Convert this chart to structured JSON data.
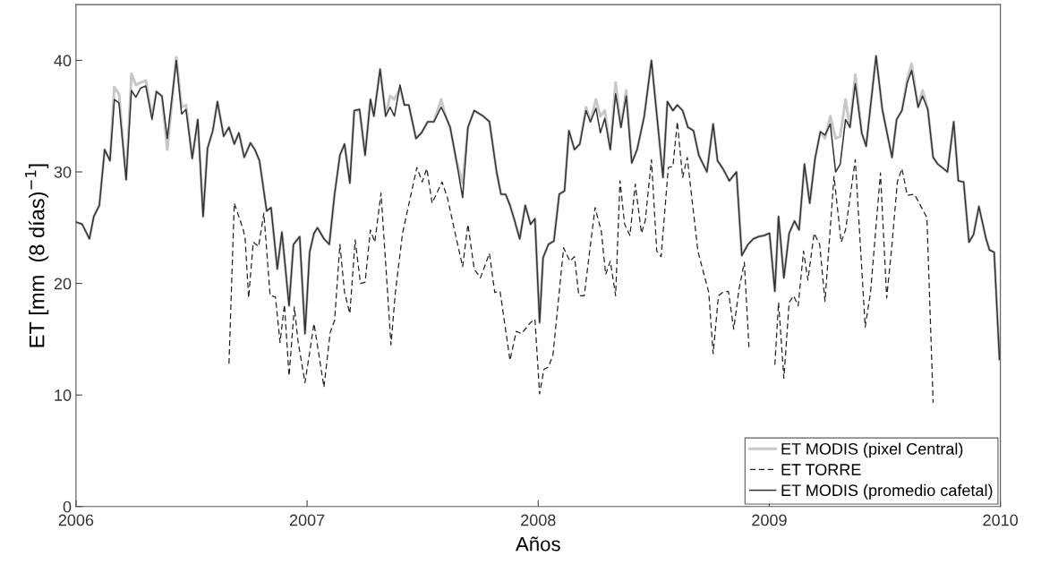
{
  "chart_data": {
    "type": "line",
    "xlabel": "Años",
    "ylabel": "ET [mm  (8 días)$^{−1}$]",
    "xlim": [
      2006,
      2010
    ],
    "xticks": [
      2006,
      2007,
      2008,
      2009,
      2010
    ],
    "ylim": [
      0,
      45
    ],
    "yticks": [
      0,
      10,
      20,
      30,
      40
    ],
    "grid": false,
    "legend": "bottom right",
    "marker": "none",
    "series": [
      {
        "name": "ET MODIS (pixel Central)",
        "color": "#c8c8c8",
        "line_style": "solid",
        "x": [
          2006.0,
          2006.027,
          2006.058,
          2006.077,
          2006.101,
          2006.124,
          2006.147,
          2006.166,
          2006.186,
          2006.217,
          2006.24,
          2006.259,
          2006.279,
          2006.302,
          2006.329,
          2006.348,
          2006.372,
          2006.395,
          2006.434,
          2006.457,
          2006.476,
          2006.503,
          2006.527,
          2006.55,
          2006.569,
          2006.592,
          2006.612,
          2006.639,
          2006.662,
          2006.685,
          2006.705,
          2006.728,
          2006.755,
          2006.774,
          2006.794,
          2006.825,
          2006.844,
          2006.871,
          2006.891,
          2006.922,
          2006.941,
          2006.968,
          2006.991,
          2007.011,
          2007.03,
          2007.045,
          2007.073,
          2007.096,
          2007.119,
          2007.142,
          2007.162,
          2007.185,
          2007.204,
          2007.227,
          2007.251,
          2007.274,
          2007.289,
          2007.316,
          2007.34,
          2007.359,
          2007.378,
          2007.402,
          2007.421,
          2007.44,
          2007.471,
          2007.495,
          2007.522,
          2007.549,
          2007.58,
          2007.599,
          2007.619,
          2007.646,
          2007.673,
          2007.696,
          2007.723,
          2007.762,
          2007.789,
          2007.82,
          2007.839,
          2007.859,
          2007.878,
          2007.897,
          2007.92,
          2007.944,
          2007.967,
          2007.986,
          2008.006,
          2008.021,
          2008.044,
          2008.068,
          2008.091,
          2008.114,
          2008.133,
          2008.157,
          2008.18,
          2008.207,
          2008.226,
          2008.25,
          2008.269,
          2008.288,
          2008.312,
          2008.335,
          2008.358,
          2008.381,
          2008.405,
          2008.428,
          2008.459,
          2008.49,
          2008.54,
          2008.559,
          2008.583,
          2008.602,
          2008.625,
          2008.648,
          2008.672,
          2008.695,
          2008.73,
          2008.757,
          2008.776,
          2008.799,
          2008.827,
          2008.858,
          2008.881,
          2008.908,
          2008.931,
          2008.954,
          2008.978,
          2009.001,
          2009.024,
          2009.04,
          2009.063,
          2009.086,
          2009.109,
          2009.129,
          2009.152,
          2009.175,
          2009.198,
          2009.221,
          2009.241,
          2009.264,
          2009.287,
          2009.307,
          2009.33,
          2009.349,
          2009.372,
          2009.4,
          2009.419,
          2009.462,
          2009.489,
          2009.531,
          2009.551,
          2009.574,
          2009.597,
          2009.616,
          2009.644,
          2009.663,
          2009.686,
          2009.709,
          2009.729,
          2009.771,
          2009.798,
          2009.818,
          2009.841,
          2009.864,
          2009.884,
          2009.907,
          2009.938,
          2009.953,
          2009.973,
          2009.996
        ],
        "values": [
          25.5,
          25.3,
          24,
          26,
          27,
          32,
          31,
          37.6,
          37,
          29.3,
          38.8,
          37.8,
          38,
          38.2,
          35,
          37.2,
          36.8,
          32,
          40.3,
          35.8,
          36,
          31.2,
          34.7,
          26,
          32.1,
          33.7,
          36.3,
          33.2,
          34,
          32.5,
          33.5,
          31.3,
          32.6,
          32,
          31,
          26.5,
          26.8,
          21.3,
          24.6,
          18,
          23.5,
          24.2,
          15.5,
          22.8,
          24.5,
          25,
          24,
          23.5,
          28,
          31.5,
          32.5,
          29,
          35.5,
          35.6,
          31.5,
          36.5,
          35,
          39.2,
          35,
          36.8,
          36.5,
          37.5,
          36,
          36,
          33,
          33.5,
          34.5,
          34.5,
          36.5,
          35,
          34,
          31,
          29,
          34,
          35.5,
          35,
          34.5,
          30,
          28,
          28,
          27,
          25.7,
          24,
          27,
          25.3,
          25.8,
          16.5,
          22.3,
          23.5,
          23.8,
          28,
          28.3,
          33.7,
          32,
          32.5,
          35.8,
          34.5,
          36.5,
          35,
          35.5,
          32,
          38,
          34,
          37.3,
          30.8,
          32,
          35,
          40,
          29.5,
          36.3,
          35.5,
          36,
          35.5,
          34,
          33.7,
          31.5,
          30,
          34.3,
          31,
          30.3,
          29.2,
          30,
          22.5,
          23.5,
          24,
          24.2,
          24.3,
          24.5,
          19.3,
          26,
          20.5,
          24.5,
          25.6,
          24.8,
          30.7,
          27.2,
          31.2,
          33.6,
          33,
          35,
          33,
          33.2,
          36.5,
          34,
          38.7,
          33.5,
          32.3,
          40.4,
          35.6,
          31.3,
          34.7,
          35.5,
          38.3,
          39.7,
          35.8,
          37.3,
          35.6,
          31.3,
          30.7,
          30,
          34.5,
          29.2,
          29.1,
          23.7,
          24.4,
          26.9,
          24,
          23,
          22.8,
          13.2
        ]
      },
      {
        "name": "ET TORRE",
        "color": "#222222",
        "line_style": "dashed",
        "x": [
          2006.662,
          2006.685,
          2006.724,
          2006.732,
          2006.747,
          2006.767,
          2006.79,
          2006.813,
          2006.84,
          2006.863,
          2006.883,
          2006.902,
          2006.922,
          2006.945,
          2006.96,
          2006.991,
          2007.03,
          2007.073,
          2007.1,
          2007.119,
          2007.142,
          2007.162,
          2007.185,
          2007.208,
          2007.231,
          2007.251,
          2007.274,
          2007.293,
          2007.32,
          2007.363,
          2007.382,
          2007.413,
          2007.475,
          2007.498,
          2007.518,
          2007.541,
          2007.584,
          2007.607,
          2007.646,
          2007.673,
          2007.696,
          2007.723,
          2007.75,
          2007.789,
          2007.812,
          2007.835,
          2007.878,
          2007.905,
          2007.928,
          2007.967,
          2007.986,
          2008.006,
          2008.025,
          2008.044,
          2008.064,
          2008.11,
          2008.137,
          2008.157,
          2008.176,
          2008.199,
          2008.246,
          2008.273,
          2008.292,
          2008.312,
          2008.335,
          2008.354,
          2008.374,
          2008.397,
          2008.42,
          2008.447,
          2008.463,
          2008.49,
          2008.513,
          2008.532,
          2008.563,
          2008.583,
          2008.602,
          2008.625,
          2008.645,
          2008.691,
          2008.738,
          2008.757,
          2008.78,
          2008.799,
          2008.823,
          2008.846,
          2008.869,
          2008.892,
          2008.912,
          2008.95,
          2009.024,
          2009.04,
          2009.063,
          2009.086,
          2009.105,
          2009.125,
          2009.148,
          2009.167,
          2009.194,
          2009.218,
          2009.241,
          2009.28,
          2009.311,
          2009.33,
          2009.372,
          2009.415,
          2009.438,
          2009.481,
          2009.508,
          2009.531,
          2009.554,
          2009.574,
          2009.597,
          2009.628,
          2009.682,
          2009.709
        ],
        "values": [
          12.8,
          27.2,
          24.8,
          24,
          18.7,
          23.7,
          23.3,
          26.3,
          18.9,
          18.8,
          14.7,
          18.1,
          11.7,
          17.9,
          14.9,
          11.1,
          16.4,
          10.7,
          15.6,
          16.7,
          23.5,
          19.2,
          17.3,
          23.9,
          20,
          20.1,
          24.8,
          23.7,
          28.1,
          14.5,
          19.2,
          24.5,
          30.4,
          29.1,
          30.3,
          27.2,
          29.1,
          27.7,
          24,
          21.5,
          25.3,
          21.3,
          20.5,
          22.7,
          19.2,
          19.3,
          13.1,
          15.7,
          15.5,
          16.5,
          16.8,
          10.1,
          12.3,
          12.5,
          13.6,
          23.2,
          22,
          22.4,
          18.9,
          18.9,
          26.8,
          24.7,
          20.8,
          22,
          18.9,
          29.2,
          25.3,
          24.3,
          28.9,
          24.5,
          25.6,
          31.1,
          22.9,
          22.4,
          30.4,
          30.5,
          34.5,
          29.5,
          31.3,
          22.9,
          19.2,
          13.7,
          18.9,
          19.2,
          19.3,
          15.9,
          19.5,
          21.9,
          14.3,
          null,
          12.7,
          18.3,
          11.5,
          18.3,
          18.9,
          18,
          22.9,
          20.3,
          24.5,
          23.5,
          18.4,
          29.6,
          23.7,
          24.8,
          31.1,
          16.1,
          19.2,
          29.9,
          18.7,
          23.5,
          29.1,
          30.3,
          27.9,
          28,
          25.9,
          9.3
        ]
      },
      {
        "name": "ET MODIS (promedio cafetal)",
        "color": "#333333",
        "line_style": "solid",
        "x": [
          2006.0,
          2006.027,
          2006.058,
          2006.077,
          2006.101,
          2006.124,
          2006.147,
          2006.166,
          2006.186,
          2006.217,
          2006.24,
          2006.259,
          2006.279,
          2006.302,
          2006.329,
          2006.348,
          2006.372,
          2006.395,
          2006.434,
          2006.457,
          2006.476,
          2006.503,
          2006.527,
          2006.55,
          2006.569,
          2006.592,
          2006.612,
          2006.639,
          2006.662,
          2006.685,
          2006.705,
          2006.728,
          2006.755,
          2006.774,
          2006.794,
          2006.825,
          2006.844,
          2006.871,
          2006.891,
          2006.922,
          2006.941,
          2006.968,
          2006.991,
          2007.011,
          2007.03,
          2007.045,
          2007.073,
          2007.096,
          2007.119,
          2007.142,
          2007.162,
          2007.185,
          2007.204,
          2007.227,
          2007.251,
          2007.274,
          2007.289,
          2007.316,
          2007.34,
          2007.359,
          2007.378,
          2007.402,
          2007.421,
          2007.44,
          2007.471,
          2007.495,
          2007.522,
          2007.549,
          2007.58,
          2007.599,
          2007.619,
          2007.646,
          2007.673,
          2007.696,
          2007.723,
          2007.762,
          2007.789,
          2007.82,
          2007.839,
          2007.859,
          2007.878,
          2007.897,
          2007.92,
          2007.944,
          2007.967,
          2007.986,
          2008.006,
          2008.021,
          2008.044,
          2008.068,
          2008.091,
          2008.114,
          2008.133,
          2008.157,
          2008.18,
          2008.207,
          2008.226,
          2008.25,
          2008.269,
          2008.288,
          2008.312,
          2008.335,
          2008.358,
          2008.381,
          2008.405,
          2008.428,
          2008.459,
          2008.49,
          2008.54,
          2008.559,
          2008.583,
          2008.602,
          2008.625,
          2008.648,
          2008.672,
          2008.695,
          2008.73,
          2008.757,
          2008.776,
          2008.799,
          2008.827,
          2008.858,
          2008.881,
          2008.908,
          2008.931,
          2008.954,
          2008.978,
          2009.001,
          2009.024,
          2009.04,
          2009.063,
          2009.086,
          2009.109,
          2009.129,
          2009.152,
          2009.175,
          2009.198,
          2009.221,
          2009.241,
          2009.264,
          2009.287,
          2009.307,
          2009.33,
          2009.349,
          2009.372,
          2009.4,
          2009.419,
          2009.462,
          2009.489,
          2009.531,
          2009.551,
          2009.574,
          2009.597,
          2009.616,
          2009.644,
          2009.663,
          2009.686,
          2009.709,
          2009.729,
          2009.771,
          2009.798,
          2009.818,
          2009.841,
          2009.864,
          2009.884,
          2009.907,
          2009.938,
          2009.953,
          2009.973,
          2009.996
        ],
        "values": [
          25.5,
          25.3,
          24,
          26,
          27,
          32,
          31,
          36.5,
          36.2,
          29.3,
          37.3,
          36.7,
          37.5,
          37.7,
          34.7,
          37.2,
          36.8,
          33,
          40,
          35.2,
          35.6,
          31.2,
          34.7,
          26,
          32.1,
          33.7,
          36.3,
          33.2,
          34,
          32.5,
          33.5,
          31.3,
          32.6,
          32,
          31,
          26.5,
          26.8,
          21.3,
          24.6,
          18,
          23.5,
          24.2,
          15.5,
          22.8,
          24.5,
          25,
          24,
          23.5,
          28,
          31.5,
          32.5,
          29,
          35.5,
          35.6,
          31.5,
          36.5,
          35,
          39.2,
          35,
          35.8,
          35,
          37.8,
          36,
          36,
          33,
          33.5,
          34.5,
          34.5,
          35.8,
          35,
          34,
          31,
          27.7,
          34,
          35.5,
          35,
          34.5,
          30,
          28,
          28,
          27,
          25.7,
          24,
          27,
          25.3,
          25.8,
          16.5,
          22.3,
          23.5,
          23.8,
          28,
          28.3,
          33.7,
          32,
          32.5,
          35.5,
          34.5,
          35.7,
          33.5,
          34.8,
          32,
          37,
          34,
          36.8,
          30.8,
          32,
          35,
          40,
          29.5,
          36.3,
          35.5,
          36,
          35.5,
          34,
          33.7,
          31.5,
          30,
          34.3,
          31,
          30.3,
          29.2,
          30,
          22.5,
          23.5,
          24,
          24.2,
          24.3,
          24.5,
          19.3,
          26,
          20.5,
          24.5,
          25.6,
          24.8,
          30.7,
          27.2,
          31.2,
          33.6,
          33.3,
          34.3,
          30,
          30.7,
          34.7,
          34,
          37.9,
          33.5,
          32.3,
          40.4,
          35.6,
          31.3,
          34.7,
          35.5,
          38,
          39.1,
          35.8,
          36.8,
          35.6,
          31.3,
          30.7,
          30,
          34.5,
          29.2,
          29.1,
          23.7,
          24.4,
          26.9,
          24,
          23,
          22.8,
          13.2
        ]
      }
    ]
  }
}
